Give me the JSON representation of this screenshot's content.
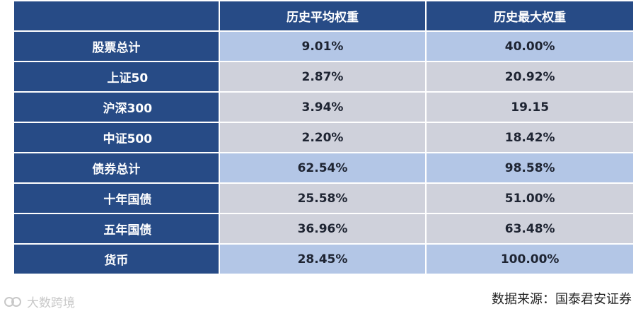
{
  "table": {
    "headers": [
      "",
      "历史平均权重",
      "历史最大权重"
    ],
    "rows": [
      {
        "label": "股票总计",
        "avg": "9.01%",
        "max": "40.00%",
        "style": "summary"
      },
      {
        "label": "上证50",
        "avg": "2.87%",
        "max": "20.92%",
        "style": "detail"
      },
      {
        "label": "沪深300",
        "avg": "3.94%",
        "max": "19.15",
        "style": "detail"
      },
      {
        "label": "中证500",
        "avg": "2.20%",
        "max": "18.42%",
        "style": "detail"
      },
      {
        "label": "债券总计",
        "avg": "62.54%",
        "max": "98.58%",
        "style": "summary"
      },
      {
        "label": "十年国债",
        "avg": "25.58%",
        "max": "51.00%",
        "style": "detail"
      },
      {
        "label": "五年国债",
        "avg": "36.96%",
        "max": "63.48%",
        "style": "detail"
      },
      {
        "label": "货币",
        "avg": "28.45%",
        "max": "100.00%",
        "style": "summary"
      }
    ]
  },
  "source_note": "数据来源：国泰君安证券",
  "watermark": {
    "text": "大数跨境",
    "logo_icon": "watermark-logo-icon"
  },
  "colors": {
    "header_bg": "#274b86",
    "summary_bg": "#b3c6e6",
    "detail_bg": "#cfd1db"
  }
}
